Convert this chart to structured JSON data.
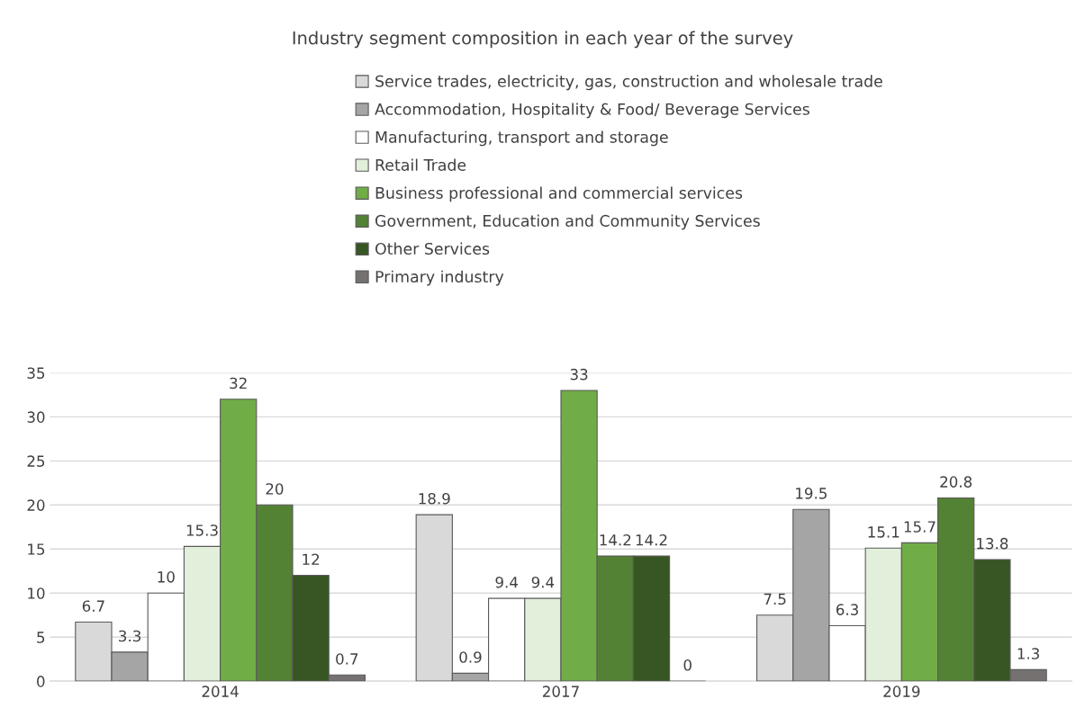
{
  "chart_data": {
    "type": "bar",
    "title": "Industry segment composition in each year of the survey",
    "categories": [
      "2014",
      "2017",
      "2019"
    ],
    "series": [
      {
        "name": "Service trades, electricity, gas, construction and wholesale trade",
        "color": "#d9d9d9",
        "values": [
          6.7,
          18.9,
          7.5
        ]
      },
      {
        "name": "Accommodation, Hospitality & Food/ Beverage Services",
        "color": "#a5a5a5",
        "values": [
          3.3,
          0.9,
          19.5
        ]
      },
      {
        "name": "Manufacturing, transport and storage",
        "color": "#ffffff",
        "values": [
          10,
          9.4,
          6.3
        ]
      },
      {
        "name": "Retail Trade",
        "color": "#e2efda",
        "values": [
          15.3,
          9.4,
          15.1
        ]
      },
      {
        "name": "Business professional and commercial services",
        "color": "#70ad47",
        "values": [
          32,
          33,
          15.7
        ]
      },
      {
        "name": "Government, Education and Community Services",
        "color": "#548235",
        "values": [
          20,
          14.2,
          20.8
        ]
      },
      {
        "name": "Other Services",
        "color": "#375623",
        "values": [
          12,
          14.2,
          13.8
        ]
      },
      {
        "name": "Primary industry",
        "color": "#767171",
        "values": [
          0.7,
          0,
          1.3
        ]
      }
    ],
    "ylim": [
      0,
      35
    ],
    "yticks": [
      0,
      5,
      10,
      15,
      20,
      25,
      30,
      35
    ],
    "grid": "y",
    "legend": "top",
    "data_labels": true
  }
}
